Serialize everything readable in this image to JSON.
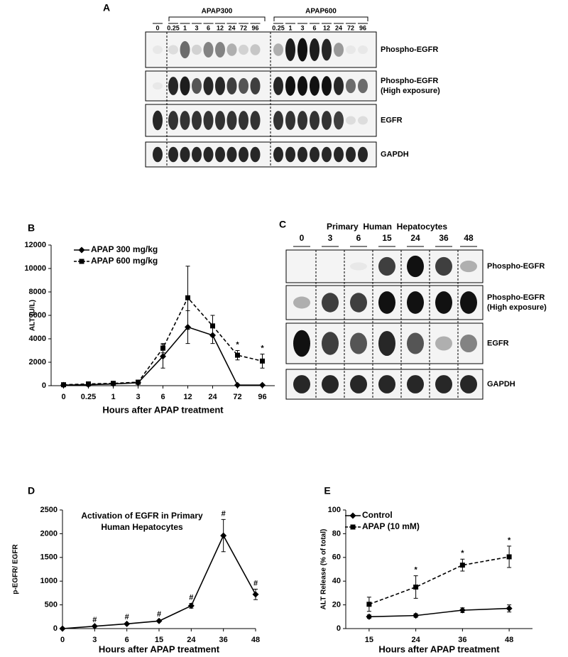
{
  "panel_labels": [
    "A",
    "B",
    "C",
    "D",
    "E"
  ],
  "blot_a": {
    "groups": [
      "APAP300",
      "APAP600"
    ],
    "lanes": [
      "0",
      "0.25",
      "1",
      "3",
      "6",
      "12",
      "24",
      "72",
      "96",
      "0.25",
      "1",
      "3",
      "6",
      "12",
      "24",
      "72",
      "96"
    ],
    "rows": [
      [
        "Phospho-EGFR"
      ],
      [
        "Phospho-EGFR",
        "(High exposure)"
      ],
      [
        "EGFR"
      ],
      [
        "GAPDH"
      ]
    ]
  },
  "blot_c": {
    "title": "Primary  Human  Hepatocytes",
    "lanes": [
      "0",
      "3",
      "6",
      "15",
      "24",
      "36",
      "48"
    ],
    "rows": [
      [
        "Phospho-EGFR"
      ],
      [
        "Phospho-EGFR",
        "(High exposure)"
      ],
      [
        "EGFR"
      ],
      [
        "GAPDH"
      ]
    ]
  },
  "chart_data": [
    {
      "type": "line",
      "ylabel": "ALT (U/L)",
      "xlabel": "Hours after APAP treatment",
      "categories": [
        "0",
        "0.25",
        "1",
        "3",
        "6",
        "12",
        "24",
        "72",
        "96"
      ],
      "ylim": [
        0,
        12000
      ],
      "yticks": [
        0,
        2000,
        4000,
        6000,
        8000,
        10000,
        12000
      ],
      "series": [
        {
          "name": "APAP 300 mg/kg",
          "color": "#000000",
          "marker": "diamond",
          "dashed": false,
          "values": [
            50,
            80,
            150,
            250,
            2500,
            5000,
            4300,
            50,
            50
          ],
          "errors": [
            30,
            40,
            60,
            100,
            1000,
            1400,
            700,
            30,
            30
          ],
          "annotations": [
            null,
            null,
            null,
            null,
            null,
            null,
            null,
            null,
            null
          ]
        },
        {
          "name": "APAP 600 mg/kg",
          "color": "#000000",
          "marker": "square",
          "dashed": true,
          "values": [
            80,
            150,
            200,
            300,
            3200,
            7500,
            5100,
            2600,
            2100
          ],
          "errors": [
            40,
            60,
            80,
            150,
            400,
            2700,
            900,
            400,
            600
          ],
          "annotations": [
            null,
            null,
            null,
            null,
            null,
            null,
            null,
            "*",
            "*"
          ]
        }
      ]
    },
    {
      "type": "line",
      "title": [
        "Activation of EGFR in Primary",
        "Human Hepatocytes"
      ],
      "ylabel": "p-EGFR/ EGFR",
      "xlabel": "Hours after APAP treatment",
      "categories": [
        "0",
        "3",
        "6",
        "15",
        "24",
        "36",
        "48"
      ],
      "ylim": [
        0,
        2500
      ],
      "yticks": [
        0,
        500,
        1000,
        1500,
        2000,
        2500
      ],
      "series": [
        {
          "color": "#000000",
          "marker": "diamond",
          "dashed": false,
          "values": [
            0,
            50,
            100,
            160,
            480,
            1960,
            720
          ],
          "errors": [
            0,
            10,
            15,
            20,
            50,
            340,
            110
          ],
          "annotations": [
            null,
            "#",
            "#",
            "#",
            "#",
            "#",
            "#"
          ]
        }
      ]
    },
    {
      "type": "line",
      "ylabel": "ALT Release (% of total)",
      "xlabel": "Hours after APAP treatment",
      "categories": [
        "15",
        "24",
        "36",
        "48"
      ],
      "ylim": [
        0,
        100
      ],
      "yticks": [
        0,
        20,
        40,
        60,
        80,
        100
      ],
      "series": [
        {
          "name": "Control",
          "color": "#000000",
          "marker": "diamond",
          "dashed": false,
          "values": [
            10,
            11,
            15.5,
            17
          ],
          "errors": [
            1.5,
            1.5,
            2,
            3
          ],
          "annotations": [
            null,
            null,
            null,
            null
          ]
        },
        {
          "name": "APAP (10 mM)",
          "color": "#000000",
          "marker": "square",
          "dashed": true,
          "values": [
            20.5,
            35,
            53.5,
            60.5
          ],
          "errors": [
            6,
            9.5,
            5,
            9
          ],
          "annotations": [
            null,
            "*",
            "*",
            "*"
          ]
        }
      ]
    }
  ]
}
